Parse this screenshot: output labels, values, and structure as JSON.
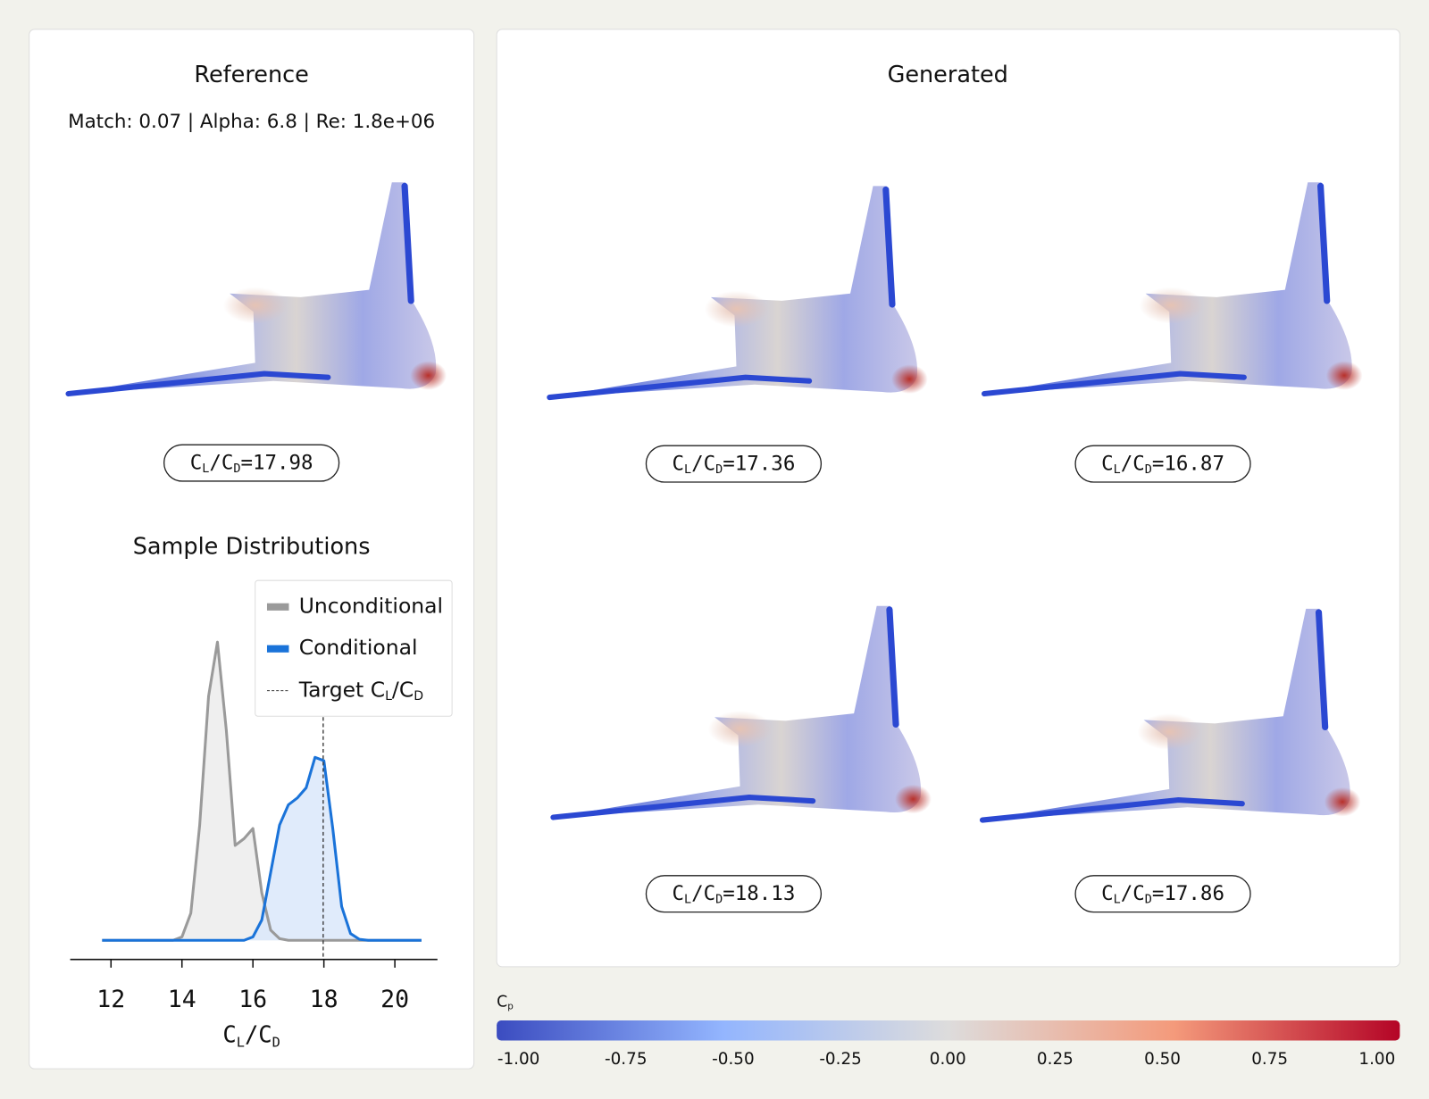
{
  "reference": {
    "title": "Reference",
    "subtitle": "Match: 0.07 | Alpha: 6.8 | Re: 1.8e+06",
    "ratio": 17.98
  },
  "generated": {
    "title": "Generated",
    "samples": [
      {
        "ratio": 17.36
      },
      {
        "ratio": 16.87
      },
      {
        "ratio": 18.13
      },
      {
        "ratio": 17.86
      }
    ]
  },
  "ratio_symbol": [
    "C",
    "L",
    "/C",
    "D",
    "="
  ],
  "chart_data": {
    "type": "line",
    "title": "Sample Distributions",
    "x": [
      11.75,
      12,
      12.25,
      12.5,
      12.75,
      13,
      13.25,
      13.5,
      13.75,
      14,
      14.25,
      14.5,
      14.75,
      15,
      15.25,
      15.5,
      15.75,
      16,
      16.25,
      16.5,
      16.75,
      17,
      17.25,
      17.5,
      17.75,
      18,
      18.25,
      18.5,
      18.75,
      19,
      19.25,
      19.5,
      19.75,
      20,
      20.25,
      20.5,
      20.75
    ],
    "series": [
      {
        "name": "Unconditional",
        "color": "#9a9a9a",
        "fill": "#ececec",
        "values": [
          0,
          0,
          0,
          0,
          0,
          0,
          0,
          0,
          0,
          0.01,
          0.08,
          0.34,
          0.72,
          0.88,
          0.62,
          0.28,
          0.3,
          0.33,
          0.14,
          0.03,
          0.005,
          0,
          0,
          0,
          0,
          0,
          0,
          0,
          0,
          0,
          0,
          0,
          0,
          0,
          0,
          0,
          0
        ]
      },
      {
        "name": "Conditional",
        "color": "#1a73d9",
        "fill": "#dbe7fa",
        "values": [
          0,
          0,
          0,
          0,
          0,
          0,
          0,
          0,
          0,
          0,
          0,
          0,
          0,
          0,
          0,
          0,
          0,
          0.01,
          0.06,
          0.2,
          0.34,
          0.4,
          0.42,
          0.45,
          0.54,
          0.53,
          0.33,
          0.1,
          0.02,
          0.003,
          0,
          0,
          0,
          0,
          0,
          0,
          0
        ]
      }
    ],
    "target": {
      "name": [
        "Target C",
        "L",
        "/C",
        "D"
      ],
      "value": 17.98,
      "color": "#333333"
    },
    "xlim": [
      10.85,
      21.2
    ],
    "xticks": [
      12,
      14,
      16,
      18,
      20
    ],
    "ylim": [
      0,
      1
    ],
    "legend": "upper right"
  },
  "colorbar": {
    "label": [
      "C",
      "p"
    ],
    "lim": [
      -1,
      1
    ],
    "ticks": [
      {
        "value": -1,
        "label": "-1.00"
      },
      {
        "value": -0.75,
        "label": "-0.75"
      },
      {
        "value": -0.5,
        "label": "-0.50"
      },
      {
        "value": -0.25,
        "label": "-0.25"
      },
      {
        "value": 0,
        "label": "0.00"
      },
      {
        "value": 0.25,
        "label": "0.25"
      },
      {
        "value": 0.5,
        "label": "0.50"
      },
      {
        "value": 0.75,
        "label": "0.75"
      },
      {
        "value": 1,
        "label": "1.00"
      }
    ],
    "colors": [
      "#3b4cc0",
      "#93b5fe",
      "#dddcdc",
      "#f49a7b",
      "#b40426"
    ]
  }
}
